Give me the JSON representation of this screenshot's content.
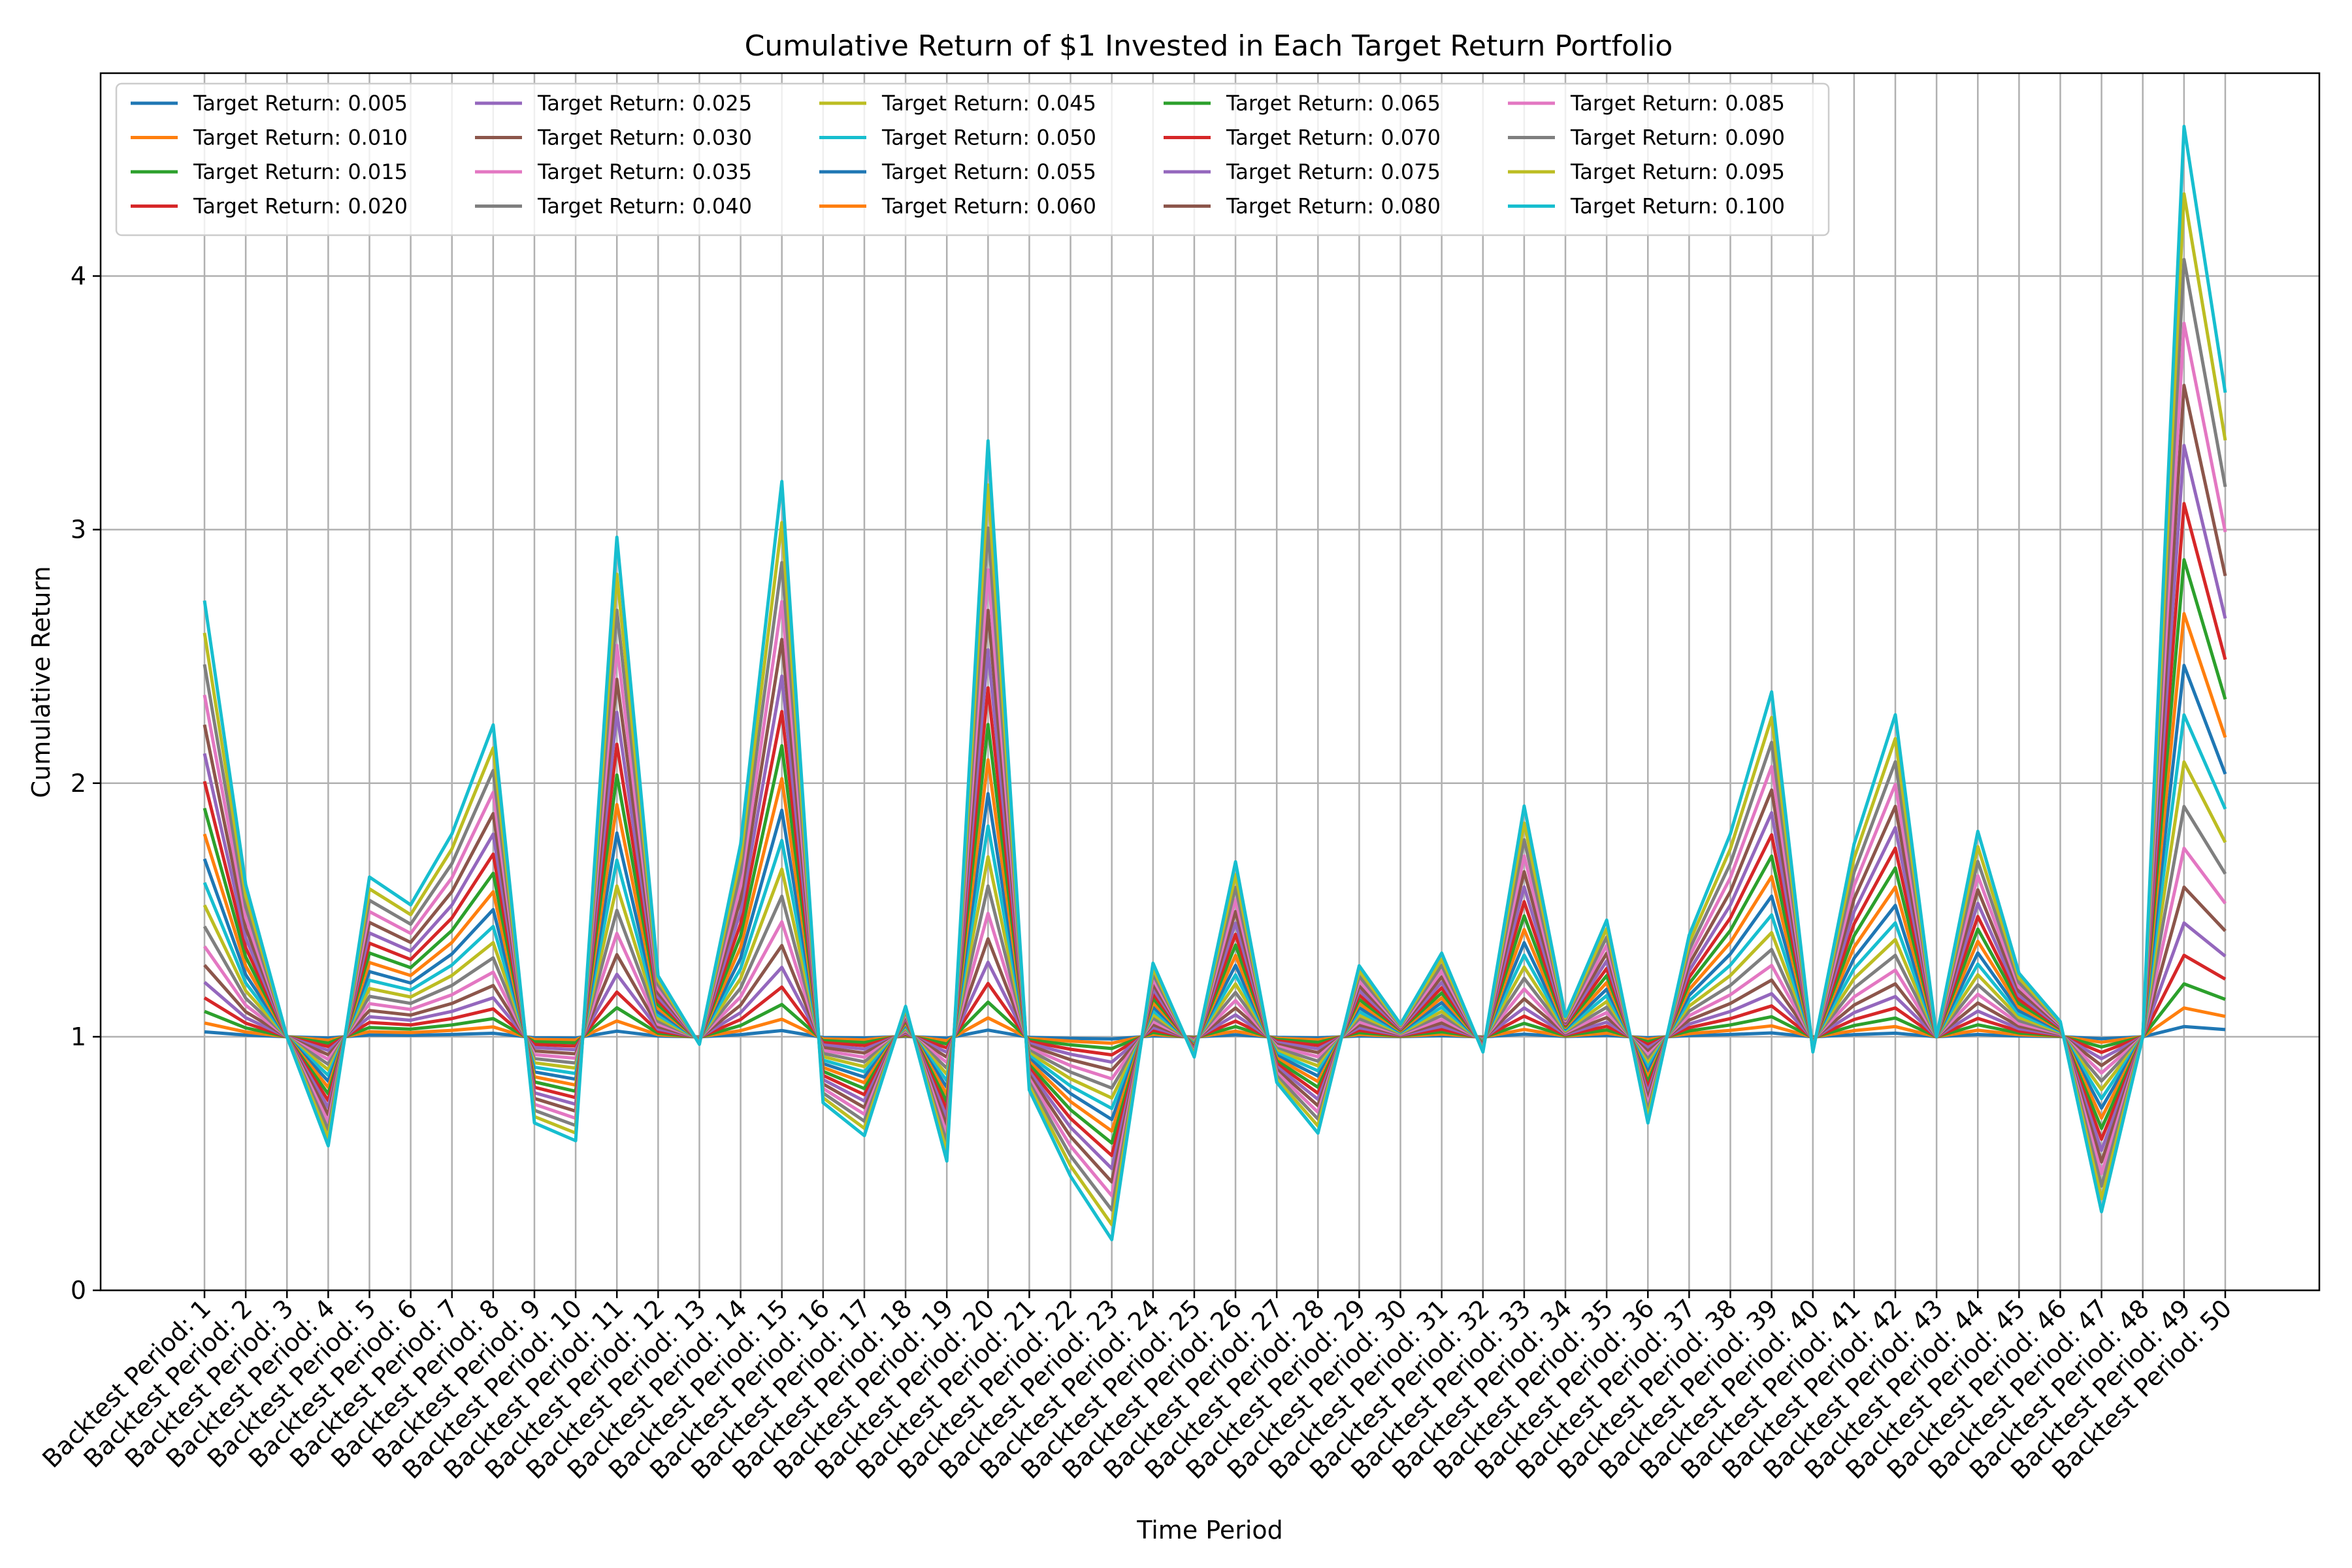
{
  "chart_data": {
    "type": "line",
    "title": "Cumulative Return of $1 Invested in Each Target Return Portfolio",
    "xlabel": "Time Period",
    "ylabel": "Cumulative Return",
    "ylim": [
      0,
      4.8
    ],
    "yticks": [
      0,
      1,
      2,
      3,
      4
    ],
    "grid": true,
    "legend_position": "top-left",
    "legend_columns": 5,
    "categories": [
      "Backtest Period: 1",
      "Backtest Period: 2",
      "Backtest Period: 3",
      "Backtest Period: 4",
      "Backtest Period: 5",
      "Backtest Period: 6",
      "Backtest Period: 7",
      "Backtest Period: 8",
      "Backtest Period: 9",
      "Backtest Period: 10",
      "Backtest Period: 11",
      "Backtest Period: 12",
      "Backtest Period: 13",
      "Backtest Period: 14",
      "Backtest Period: 15",
      "Backtest Period: 16",
      "Backtest Period: 17",
      "Backtest Period: 18",
      "Backtest Period: 19",
      "Backtest Period: 20",
      "Backtest Period: 21",
      "Backtest Period: 22",
      "Backtest Period: 23",
      "Backtest Period: 24",
      "Backtest Period: 25",
      "Backtest Period: 26",
      "Backtest Period: 27",
      "Backtest Period: 28",
      "Backtest Period: 29",
      "Backtest Period: 30",
      "Backtest Period: 31",
      "Backtest Period: 32",
      "Backtest Period: 33",
      "Backtest Period: 34",
      "Backtest Period: 35",
      "Backtest Period: 36",
      "Backtest Period: 37",
      "Backtest Period: 38",
      "Backtest Period: 39",
      "Backtest Period: 40",
      "Backtest Period: 41",
      "Backtest Period: 42",
      "Backtest Period: 43",
      "Backtest Period: 44",
      "Backtest Period: 45",
      "Backtest Period: 46",
      "Backtest Period: 47",
      "Backtest Period: 48",
      "Backtest Period: 49",
      "Backtest Period: 50"
    ],
    "envelope_max": [
      2.72,
      1.6,
      1.0,
      0.98,
      1.63,
      1.52,
      1.8,
      2.23,
      0.99,
      1.0,
      2.97,
      1.24,
      0.97,
      1.76,
      3.19,
      0.98,
      0.99,
      1.12,
      1.0,
      3.35,
      0.99,
      1.0,
      1.0,
      1.29,
      0.98,
      1.69,
      1.03,
      1.0,
      1.28,
      1.05,
      1.33,
      1.0,
      1.91,
      1.08,
      1.46,
      1.0,
      1.4,
      1.8,
      2.36,
      0.98,
      1.76,
      2.27,
      1.0,
      1.81,
      1.25,
      1.06,
      1.0,
      1.0,
      4.59,
      3.54
    ],
    "envelope_min": [
      1.0,
      1.0,
      1.0,
      0.57,
      0.73,
      1.0,
      1.0,
      1.0,
      0.66,
      0.59,
      1.0,
      1.0,
      0.97,
      1.0,
      1.0,
      0.74,
      0.61,
      1.0,
      0.51,
      1.0,
      0.79,
      0.45,
      0.2,
      1.0,
      0.92,
      1.0,
      0.82,
      0.62,
      1.0,
      1.0,
      1.0,
      0.94,
      1.0,
      1.0,
      1.0,
      0.66,
      1.0,
      1.0,
      1.0,
      0.94,
      1.0,
      1.0,
      1.0,
      1.0,
      0.99,
      1.0,
      0.31,
      1.0,
      1.0,
      1.01
    ],
    "series": [
      {
        "name": "Target Return: 0.005",
        "color": "#1f77b4"
      },
      {
        "name": "Target Return: 0.010",
        "color": "#ff7f0e"
      },
      {
        "name": "Target Return: 0.015",
        "color": "#2ca02c"
      },
      {
        "name": "Target Return: 0.020",
        "color": "#d62728"
      },
      {
        "name": "Target Return: 0.025",
        "color": "#9467bd"
      },
      {
        "name": "Target Return: 0.030",
        "color": "#8c564b"
      },
      {
        "name": "Target Return: 0.035",
        "color": "#e377c2"
      },
      {
        "name": "Target Return: 0.040",
        "color": "#7f7f7f"
      },
      {
        "name": "Target Return: 0.045",
        "color": "#bcbd22"
      },
      {
        "name": "Target Return: 0.050",
        "color": "#17becf"
      },
      {
        "name": "Target Return: 0.055",
        "color": "#1f77b4"
      },
      {
        "name": "Target Return: 0.060",
        "color": "#ff7f0e"
      },
      {
        "name": "Target Return: 0.065",
        "color": "#2ca02c"
      },
      {
        "name": "Target Return: 0.070",
        "color": "#d62728"
      },
      {
        "name": "Target Return: 0.075",
        "color": "#9467bd"
      },
      {
        "name": "Target Return: 0.080",
        "color": "#8c564b"
      },
      {
        "name": "Target Return: 0.085",
        "color": "#e377c2"
      },
      {
        "name": "Target Return: 0.090",
        "color": "#7f7f7f"
      },
      {
        "name": "Target Return: 0.095",
        "color": "#bcbd22"
      },
      {
        "name": "Target Return: 0.100",
        "color": "#17becf"
      }
    ]
  }
}
